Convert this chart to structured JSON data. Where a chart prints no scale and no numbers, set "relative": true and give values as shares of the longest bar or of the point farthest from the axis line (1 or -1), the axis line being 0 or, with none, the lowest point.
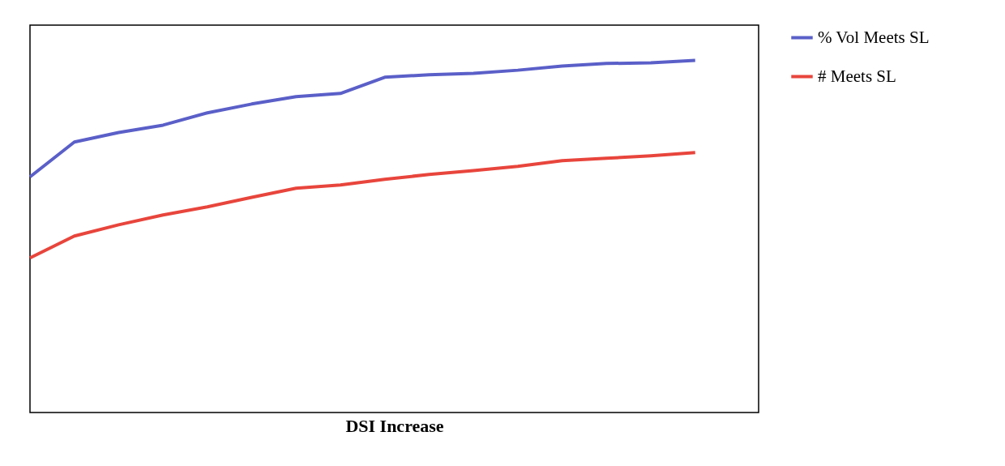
{
  "chart_data": {
    "type": "line",
    "xlabel": "DSI Increase",
    "relative": true,
    "legend": "right",
    "categories": [
      null,
      null,
      null,
      null,
      null,
      null,
      null,
      null,
      null,
      null,
      null,
      null,
      null,
      null,
      null,
      null
    ],
    "series": [
      {
        "name": "% Vol Meets SL",
        "color": "#5a5fc8",
        "values": [
          0.669,
          0.768,
          0.795,
          0.816,
          0.851,
          0.876,
          0.897,
          0.906,
          0.952,
          0.959,
          0.963,
          0.972,
          0.984,
          0.991,
          0.993,
          1
        ]
      },
      {
        "name": "# Meets SL",
        "color": "#e8453c",
        "values": [
          0.439,
          0.501,
          0.533,
          0.561,
          0.584,
          0.611,
          0.637,
          0.646,
          0.662,
          0.676,
          0.687,
          0.699,
          0.715,
          0.722,
          0.729,
          0.738
        ]
      }
    ]
  }
}
